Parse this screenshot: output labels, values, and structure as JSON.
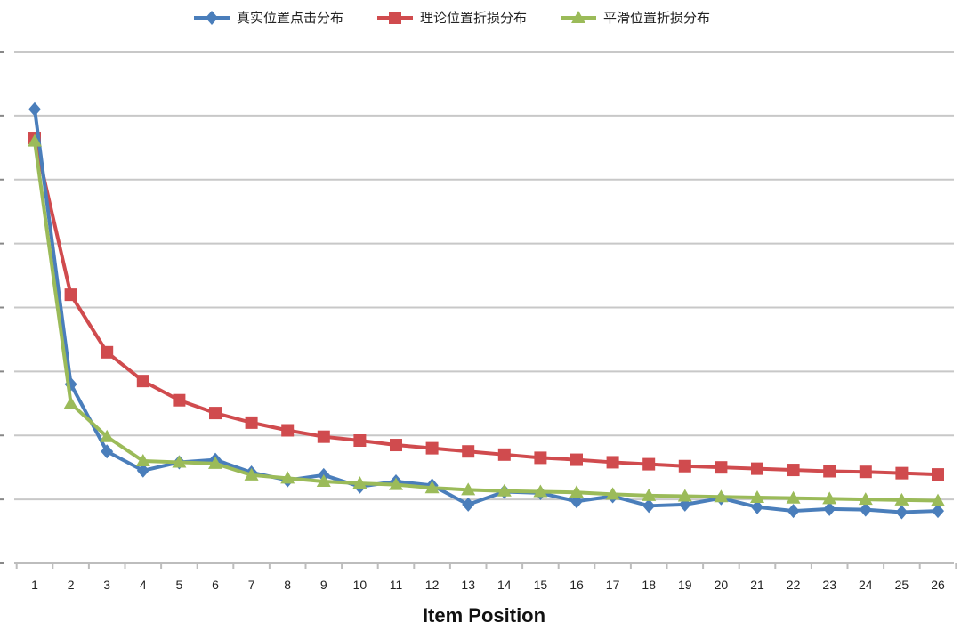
{
  "chart_data": {
    "type": "line",
    "title": "",
    "xlabel": "Item Position",
    "ylabel": "",
    "categories": [
      "1",
      "2",
      "3",
      "4",
      "5",
      "6",
      "7",
      "8",
      "9",
      "10",
      "11",
      "12",
      "13",
      "14",
      "15",
      "16",
      "17",
      "18",
      "19",
      "20",
      "21",
      "22",
      "23",
      "24",
      "25",
      "26"
    ],
    "ylim": [
      0,
      8
    ],
    "grid": true,
    "legend_position": "top",
    "series": [
      {
        "name": "真实位置点击分布",
        "color": "#4a7ebb",
        "marker": "diamond",
        "values": [
          7.1,
          2.8,
          1.75,
          1.45,
          1.58,
          1.62,
          1.42,
          1.3,
          1.38,
          1.2,
          1.28,
          1.22,
          0.92,
          1.12,
          1.1,
          0.97,
          1.05,
          0.9,
          0.92,
          1.02,
          0.88,
          0.82,
          0.85,
          0.84,
          0.8,
          0.82
        ]
      },
      {
        "name": "理论位置折损分布",
        "color": "#d04b4e",
        "marker": "square",
        "values": [
          6.65,
          4.2,
          3.3,
          2.85,
          2.55,
          2.35,
          2.2,
          2.08,
          1.98,
          1.92,
          1.85,
          1.8,
          1.75,
          1.7,
          1.65,
          1.62,
          1.58,
          1.55,
          1.52,
          1.5,
          1.48,
          1.46,
          1.44,
          1.43,
          1.41,
          1.39
        ]
      },
      {
        "name": "平滑位置折损分布",
        "color": "#9bbb59",
        "marker": "triangle",
        "values": [
          6.6,
          2.5,
          1.98,
          1.6,
          1.58,
          1.56,
          1.38,
          1.33,
          1.28,
          1.25,
          1.23,
          1.18,
          1.15,
          1.13,
          1.12,
          1.11,
          1.08,
          1.06,
          1.05,
          1.04,
          1.03,
          1.02,
          1.01,
          1.0,
          0.99,
          0.98
        ]
      }
    ]
  }
}
